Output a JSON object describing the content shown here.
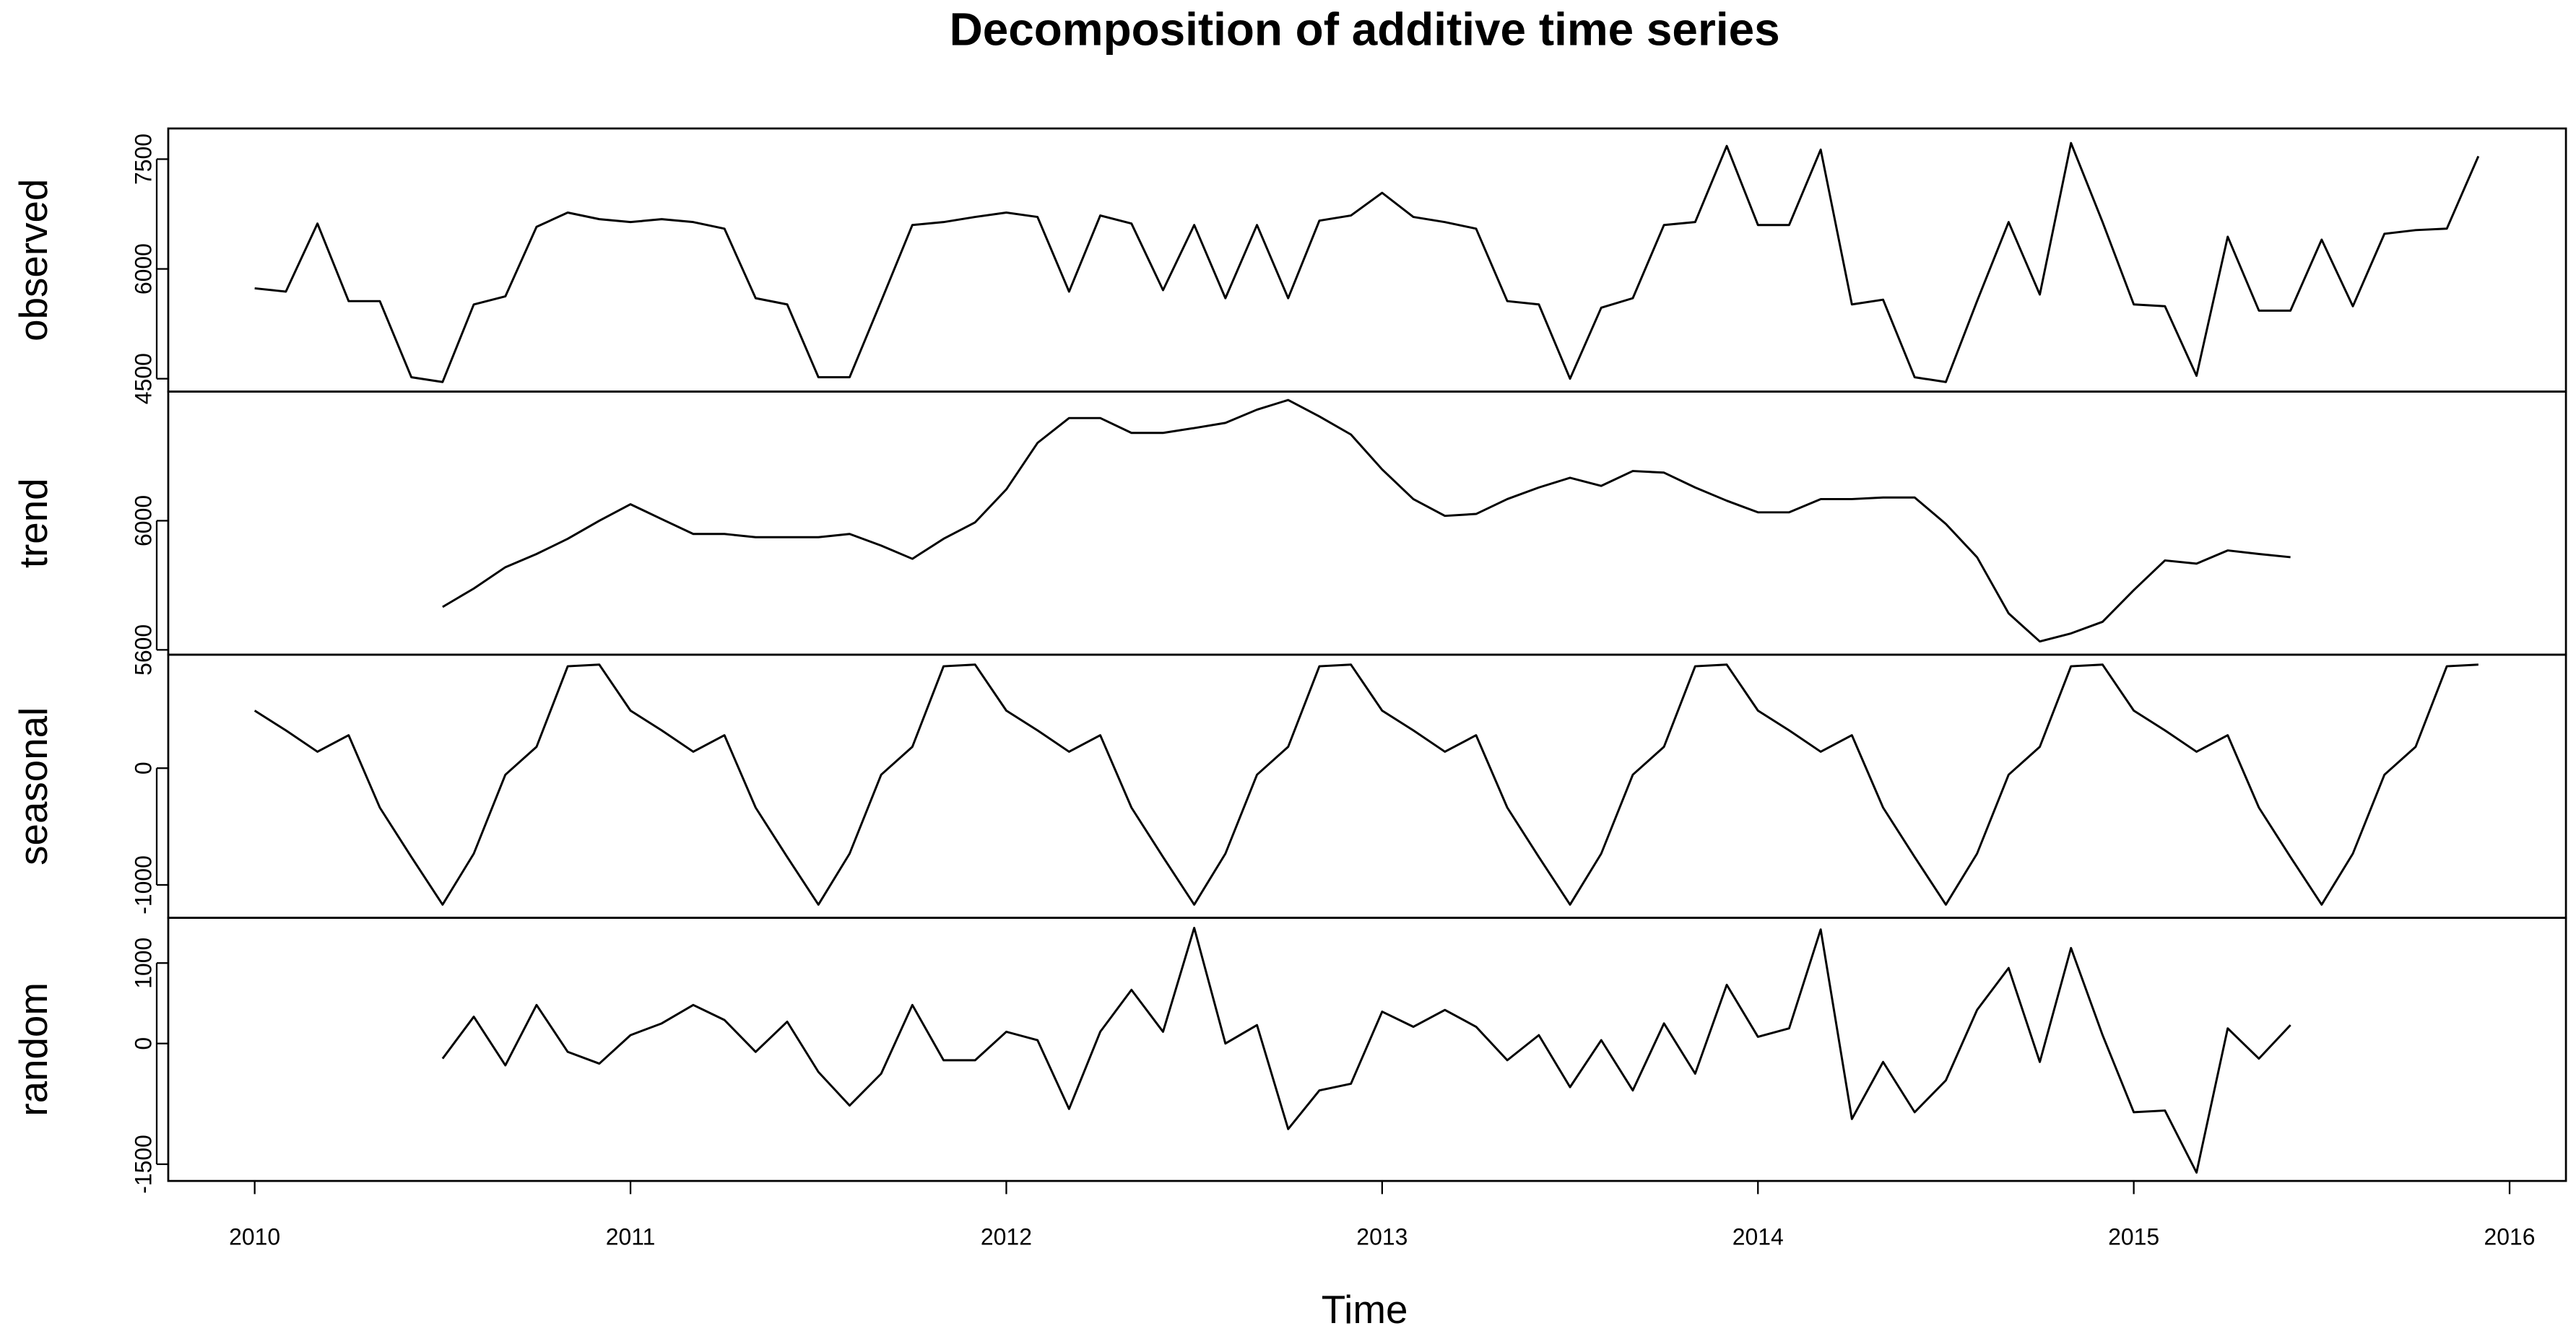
{
  "chart_data": {
    "type": "line",
    "title": "Decomposition of additive time series",
    "xlabel": "Time",
    "color": "#000000",
    "xlim": [
      2009.77,
      2016.15
    ],
    "xticks": [
      2010,
      2011,
      2012,
      2013,
      2014,
      2015,
      2016
    ],
    "x": [
      2010,
      2010.083,
      2010.167,
      2010.25,
      2010.333,
      2010.417,
      2010.5,
      2010.583,
      2010.667,
      2010.75,
      2010.833,
      2010.917,
      2011,
      2011.083,
      2011.167,
      2011.25,
      2011.333,
      2011.417,
      2011.5,
      2011.583,
      2011.667,
      2011.75,
      2011.833,
      2011.917,
      2012,
      2012.083,
      2012.167,
      2012.25,
      2012.333,
      2012.417,
      2012.5,
      2012.583,
      2012.667,
      2012.75,
      2012.833,
      2012.917,
      2013,
      2013.083,
      2013.167,
      2013.25,
      2013.333,
      2013.417,
      2013.5,
      2013.583,
      2013.667,
      2013.75,
      2013.833,
      2013.917,
      2014,
      2014.083,
      2014.167,
      2014.25,
      2014.333,
      2014.417,
      2014.5,
      2014.583,
      2014.667,
      2014.75,
      2014.833,
      2014.917,
      2015,
      2015.083,
      2015.167,
      2015.25,
      2015.333,
      2015.417,
      2015.5,
      2015.583,
      2015.667,
      2015.75,
      2015.833,
      2015.917
    ],
    "panels": [
      {
        "name": "observed",
        "ylim": [
          4324,
          7919
        ],
        "yticks": [
          4500,
          6000,
          7500
        ],
        "values": [
          5735,
          5690,
          6620,
          5560,
          5560,
          4520,
          4455,
          5515,
          5625,
          6575,
          6770,
          6680,
          6640,
          6680,
          6640,
          6550,
          5600,
          5515,
          4520,
          4520,
          5560,
          6600,
          6640,
          6710,
          6770,
          6710,
          5690,
          6730,
          6620,
          5710,
          6600,
          5600,
          6600,
          5600,
          6660,
          6730,
          7040,
          6710,
          6640,
          6550,
          5560,
          5515,
          4500,
          5470,
          5600,
          6600,
          6640,
          7680,
          6600,
          6600,
          7630,
          5515,
          5580,
          4520,
          4455,
          5560,
          6640,
          5650,
          7720,
          6640,
          5515,
          5490,
          4540,
          6440,
          5430,
          5430,
          6400,
          5490,
          6480,
          6530,
          6550,
          7540
        ]
      },
      {
        "name": "trend",
        "ylim": [
          5585,
          6400
        ],
        "yticks": [
          5600,
          6000
        ],
        "values": [
          null,
          null,
          null,
          null,
          null,
          null,
          5733,
          5790,
          5856,
          5897,
          5944,
          6000,
          6051,
          6005,
          5959,
          5959,
          5949,
          5949,
          5949,
          5959,
          5923,
          5882,
          5944,
          5995,
          6097,
          6241,
          6318,
          6318,
          6272,
          6272,
          6287,
          6303,
          6344,
          6374,
          6323,
          6267,
          6159,
          6067,
          6015,
          6021,
          6067,
          6103,
          6133,
          6108,
          6154,
          6149,
          6103,
          6062,
          6026,
          6026,
          6067,
          6067,
          6072,
          6072,
          5990,
          5887,
          5713,
          5626,
          5651,
          5687,
          5785,
          5877,
          5867,
          5908,
          5897,
          5887,
          null,
          null,
          null,
          null,
          null,
          null
        ]
      },
      {
        "name": "seasonal",
        "ylim": [
          -1282,
          972
        ],
        "yticks": [
          -1000,
          0
        ],
        "values": [
          493,
          324,
          141,
          282,
          -338,
          -761,
          -1169,
          -732,
          -56,
          183,
          873,
          887,
          493,
          324,
          141,
          282,
          -338,
          -761,
          -1169,
          -732,
          -56,
          183,
          873,
          887,
          493,
          324,
          141,
          282,
          -338,
          -761,
          -1169,
          -732,
          -56,
          183,
          873,
          887,
          493,
          324,
          141,
          282,
          -338,
          -761,
          -1169,
          -732,
          -56,
          183,
          873,
          887,
          493,
          324,
          141,
          282,
          -338,
          -761,
          -1169,
          -732,
          -56,
          183,
          873,
          887,
          493,
          324,
          141,
          282,
          -338,
          -761,
          -1169,
          -732,
          -56,
          183,
          873,
          887
        ]
      },
      {
        "name": "random",
        "ylim": [
          -1708,
          1562
        ],
        "yticks": [
          -1500,
          0,
          1000
        ],
        "values": [
          null,
          null,
          null,
          null,
          null,
          null,
          -188,
          333,
          -271,
          479,
          -104,
          -250,
          104,
          250,
          479,
          292,
          -104,
          271,
          -354,
          -771,
          -375,
          479,
          -208,
          -208,
          146,
          42,
          -813,
          146,
          667,
          146,
          1437,
          0,
          229,
          -1063,
          -583,
          -500,
          396,
          208,
          417,
          208,
          -208,
          104,
          -542,
          42,
          -583,
          250,
          -375,
          729,
          83,
          188,
          1417,
          -938,
          -229,
          -854,
          -458,
          417,
          938,
          -229,
          1187,
          104,
          -854,
          -833,
          -1604,
          188,
          -188,
          229,
          null,
          null,
          null,
          null,
          null,
          null
        ]
      }
    ]
  }
}
